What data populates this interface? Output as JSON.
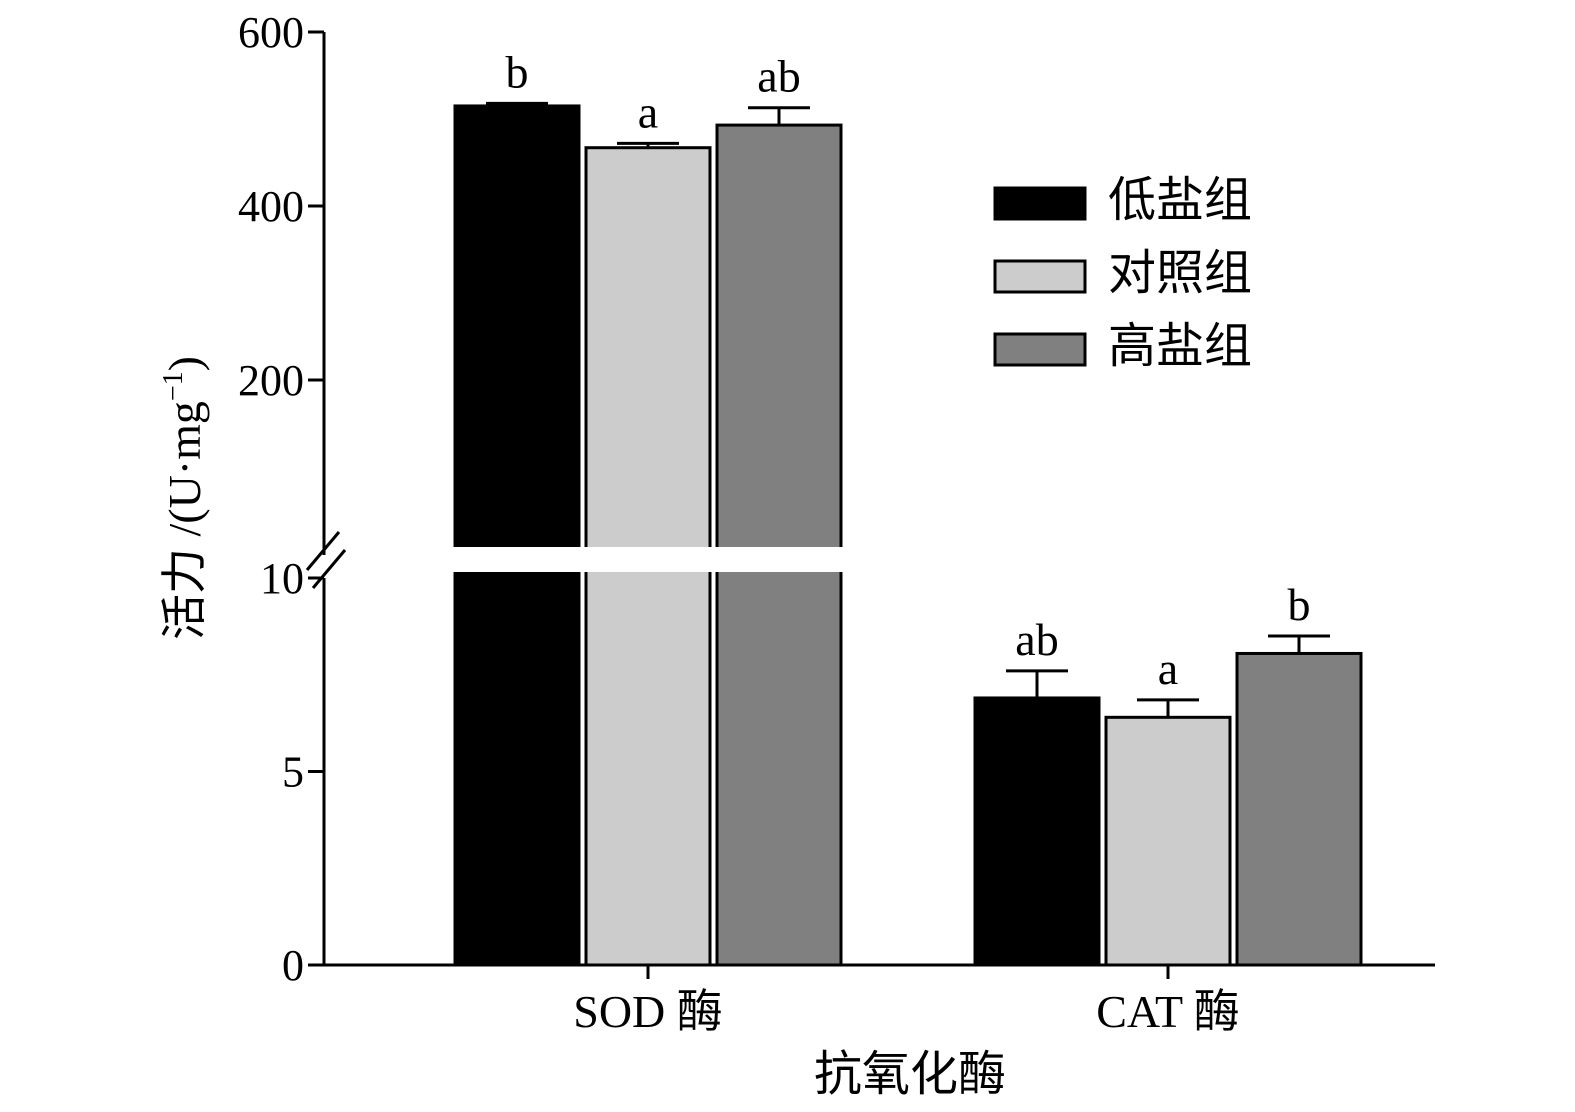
{
  "chart_data": {
    "type": "bar",
    "xlabel": "抗氧化酶",
    "ylabel": "活力 /(U·mg",
    "ylabel_sup": "−1",
    "ylabel_close": ")",
    "categories": [
      "SOD 酶",
      "CAT 酶"
    ],
    "series": [
      {
        "name": "低盐组",
        "color": "#000000",
        "values": [
          515,
          6.9
        ],
        "errors": [
          3,
          0.7
        ],
        "letters": [
          "b",
          "ab"
        ]
      },
      {
        "name": "对照组",
        "color": "#cccccc",
        "values": [
          467,
          6.4
        ],
        "errors": [
          5,
          0.45
        ],
        "letters": [
          "a",
          "a"
        ]
      },
      {
        "name": "高盐组",
        "color": "#808080",
        "values": [
          493,
          8.05
        ],
        "errors": [
          20,
          0.45
        ],
        "letters": [
          "ab",
          "b"
        ]
      }
    ],
    "y_axis_broken": true,
    "y_lower": {
      "range": [
        0,
        10
      ],
      "ticks": [
        0,
        5,
        10
      ]
    },
    "y_upper": {
      "range": [
        10,
        600
      ],
      "ticks": [
        200,
        400,
        600
      ]
    },
    "legend_position": "top-right",
    "grid": false
  }
}
